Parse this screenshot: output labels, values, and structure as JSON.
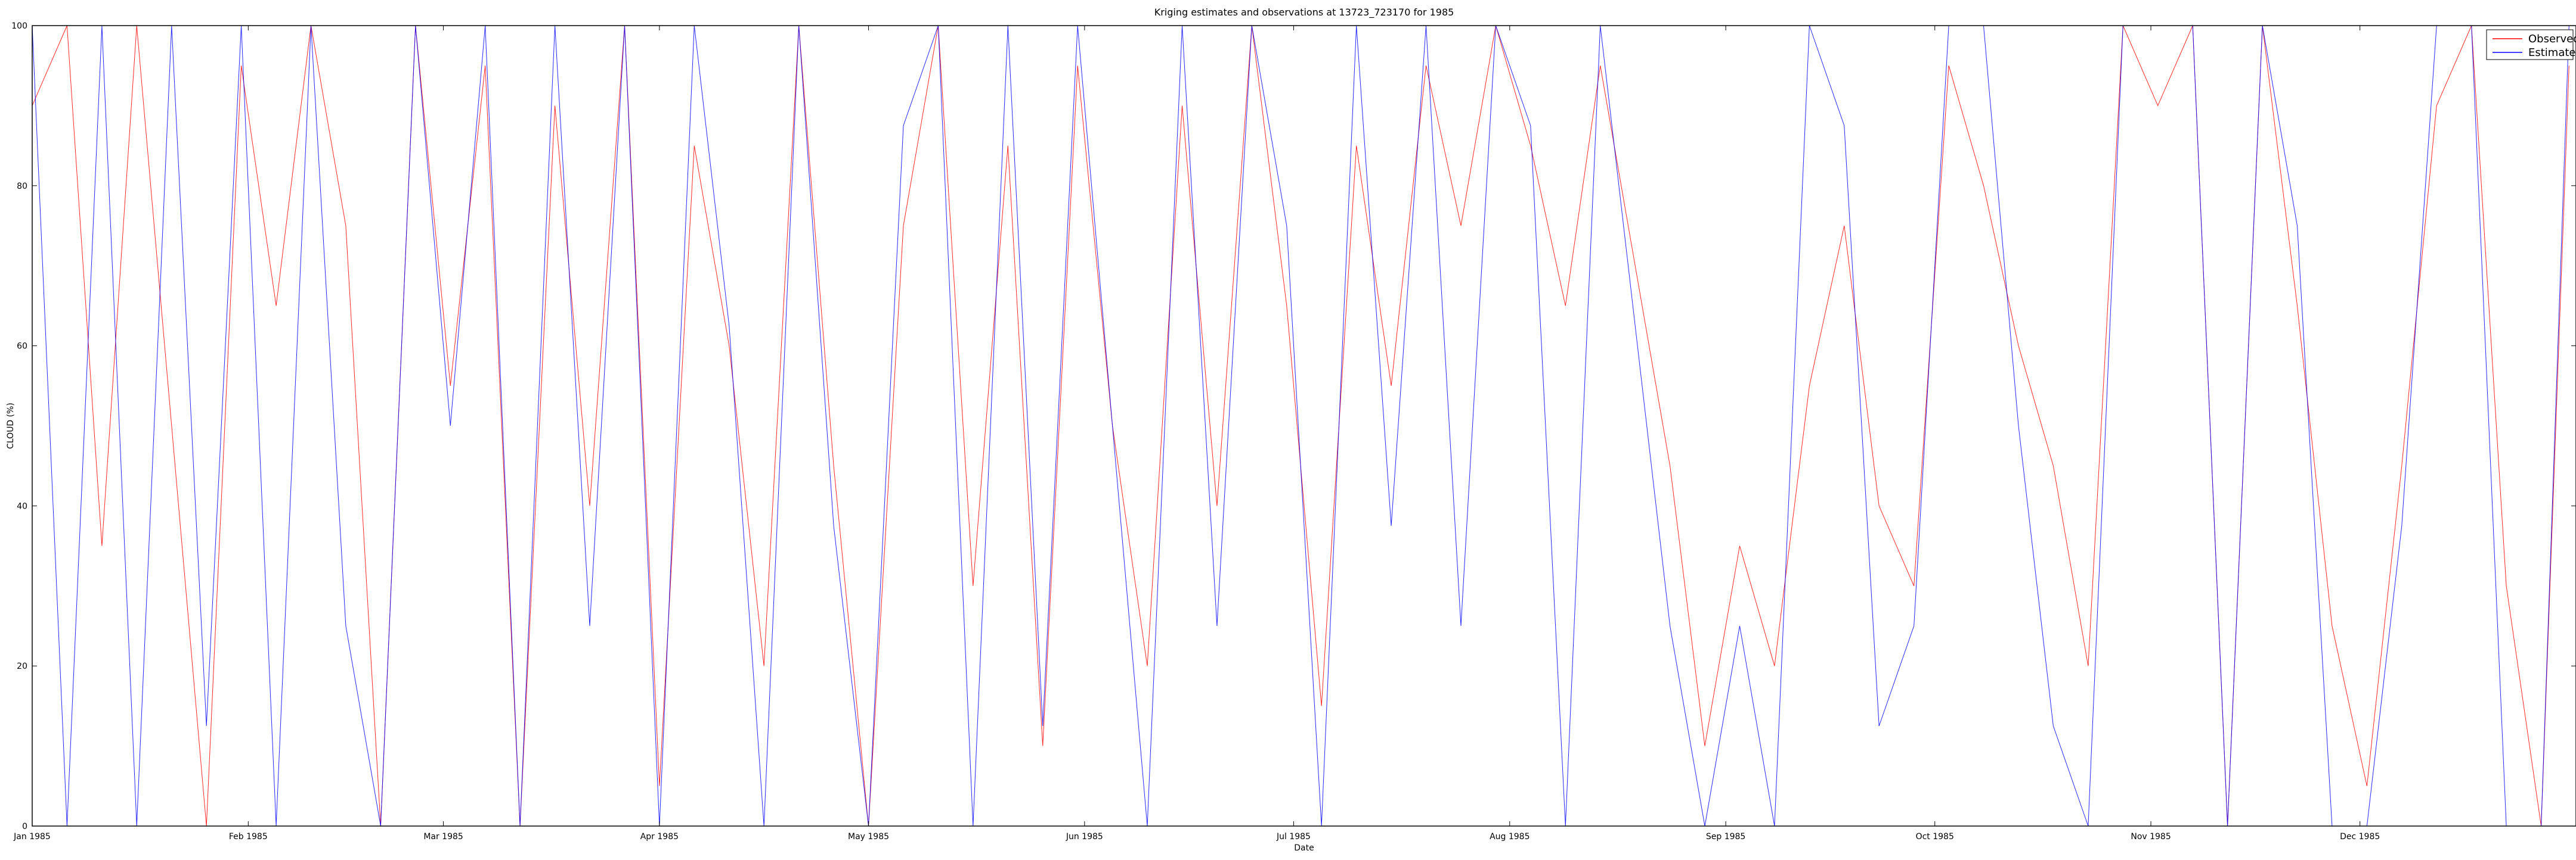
{
  "chart_data": {
    "type": "line",
    "title": "Kriging estimates and observations at 13723_723170 for 1985",
    "xlabel": "Date",
    "ylabel": "CLOUD (%)",
    "xlim": [
      "1985-01-01",
      "1985-12-31"
    ],
    "ylim": [
      0,
      100
    ],
    "x_ticks": [
      {
        "date": "1985-01-01",
        "label": "Jan 1985"
      },
      {
        "date": "1985-02-01",
        "label": "Feb 1985"
      },
      {
        "date": "1985-03-01",
        "label": "Mar 1985"
      },
      {
        "date": "1985-04-01",
        "label": "Apr 1985"
      },
      {
        "date": "1985-05-01",
        "label": "May 1985"
      },
      {
        "date": "1985-06-01",
        "label": "Jun 1985"
      },
      {
        "date": "1985-07-01",
        "label": "Jul 1985"
      },
      {
        "date": "1985-08-01",
        "label": "Aug 1985"
      },
      {
        "date": "1985-09-01",
        "label": "Sep 1985"
      },
      {
        "date": "1985-10-01",
        "label": "Oct 1985"
      },
      {
        "date": "1985-11-01",
        "label": "Nov 1985"
      },
      {
        "date": "1985-12-01",
        "label": "Dec 1985"
      }
    ],
    "y_ticks": [
      0,
      20,
      40,
      60,
      80,
      100
    ],
    "grid": false,
    "legend": {
      "position": "top-right",
      "entries": [
        {
          "label": "Observed",
          "color": "#ff0000"
        },
        {
          "label": "Estimated",
          "color": "#0000ff"
        }
      ]
    },
    "series": [
      {
        "name": "Observed",
        "color": "#ff0000",
        "x": [
          "1985-01-01",
          "1985-01-06",
          "1985-01-11",
          "1985-01-16",
          "1985-01-21",
          "1985-01-26",
          "1985-01-31",
          "1985-02-05",
          "1985-02-10",
          "1985-02-15",
          "1985-02-20",
          "1985-02-25",
          "1985-03-02",
          "1985-03-07",
          "1985-03-12",
          "1985-03-17",
          "1985-03-22",
          "1985-03-27",
          "1985-04-01",
          "1985-04-06",
          "1985-04-11",
          "1985-04-16",
          "1985-04-21",
          "1985-04-26",
          "1985-05-01",
          "1985-05-06",
          "1985-05-11",
          "1985-05-16",
          "1985-05-21",
          "1985-05-26",
          "1985-05-31",
          "1985-06-05",
          "1985-06-10",
          "1985-06-15",
          "1985-06-20",
          "1985-06-25",
          "1985-06-30",
          "1985-07-05",
          "1985-07-10",
          "1985-07-15",
          "1985-07-20",
          "1985-07-25",
          "1985-07-30",
          "1985-08-04",
          "1985-08-09",
          "1985-08-14",
          "1985-08-19",
          "1985-08-24",
          "1985-08-29",
          "1985-09-03",
          "1985-09-08",
          "1985-09-13",
          "1985-09-18",
          "1985-09-23",
          "1985-09-28",
          "1985-10-03",
          "1985-10-08",
          "1985-10-13",
          "1985-10-18",
          "1985-10-23",
          "1985-10-28",
          "1985-11-02",
          "1985-11-07",
          "1985-11-12",
          "1985-11-17",
          "1985-11-22",
          "1985-11-27",
          "1985-12-02",
          "1985-12-07",
          "1985-12-12",
          "1985-12-17",
          "1985-12-22",
          "1985-12-27",
          "1985-12-31"
        ],
        "values": [
          90,
          100,
          35,
          100,
          50,
          0,
          95,
          65,
          100,
          75,
          0,
          100,
          55,
          95,
          0,
          90,
          40,
          100,
          5,
          85,
          60,
          20,
          100,
          45,
          0,
          75,
          100,
          30,
          85,
          10,
          95,
          50,
          20,
          90,
          40,
          100,
          65,
          15,
          85,
          55,
          95,
          75,
          100,
          85,
          65,
          95,
          70,
          45,
          10,
          35,
          20,
          55,
          75,
          40,
          30,
          95,
          80,
          60,
          45,
          20,
          100,
          90,
          100,
          0,
          100,
          65,
          25,
          5,
          45,
          90,
          100,
          30,
          0,
          95
        ]
      },
      {
        "name": "Estimated",
        "color": "#0000ff",
        "x": [
          "1985-01-01",
          "1985-01-06",
          "1985-01-11",
          "1985-01-16",
          "1985-01-21",
          "1985-01-26",
          "1985-01-31",
          "1985-02-05",
          "1985-02-10",
          "1985-02-15",
          "1985-02-20",
          "1985-02-25",
          "1985-03-02",
          "1985-03-07",
          "1985-03-12",
          "1985-03-17",
          "1985-03-22",
          "1985-03-27",
          "1985-04-01",
          "1985-04-06",
          "1985-04-11",
          "1985-04-16",
          "1985-04-21",
          "1985-04-26",
          "1985-05-01",
          "1985-05-06",
          "1985-05-11",
          "1985-05-16",
          "1985-05-21",
          "1985-05-26",
          "1985-05-31",
          "1985-06-05",
          "1985-06-10",
          "1985-06-15",
          "1985-06-20",
          "1985-06-25",
          "1985-06-30",
          "1985-07-05",
          "1985-07-10",
          "1985-07-15",
          "1985-07-20",
          "1985-07-25",
          "1985-07-30",
          "1985-08-04",
          "1985-08-09",
          "1985-08-14",
          "1985-08-19",
          "1985-08-24",
          "1985-08-29",
          "1985-09-03",
          "1985-09-08",
          "1985-09-13",
          "1985-09-18",
          "1985-09-23",
          "1985-09-28",
          "1985-10-03",
          "1985-10-08",
          "1985-10-13",
          "1985-10-18",
          "1985-10-23",
          "1985-10-28",
          "1985-11-02",
          "1985-11-07",
          "1985-11-12",
          "1985-11-17",
          "1985-11-22",
          "1985-11-27",
          "1985-12-02",
          "1985-12-07",
          "1985-12-12",
          "1985-12-17",
          "1985-12-22",
          "1985-12-27",
          "1985-12-31"
        ],
        "values": [
          100,
          0,
          100,
          0,
          100,
          12.5,
          100,
          0,
          100,
          25,
          0,
          100,
          50,
          100,
          0,
          100,
          25,
          100,
          0,
          100,
          62.5,
          0,
          100,
          37.5,
          0,
          87.5,
          100,
          0,
          100,
          12.5,
          100,
          50,
          0,
          100,
          25,
          100,
          75,
          0,
          100,
          37.5,
          100,
          25,
          100,
          87.5,
          0,
          100,
          62.5,
          25,
          0,
          25,
          0,
          100,
          87.5,
          12.5,
          25,
          100,
          100,
          50,
          12.5,
          0,
          100,
          100,
          100,
          0,
          100,
          75,
          0,
          0,
          37.5,
          100,
          100,
          0,
          0,
          100
        ]
      }
    ]
  }
}
